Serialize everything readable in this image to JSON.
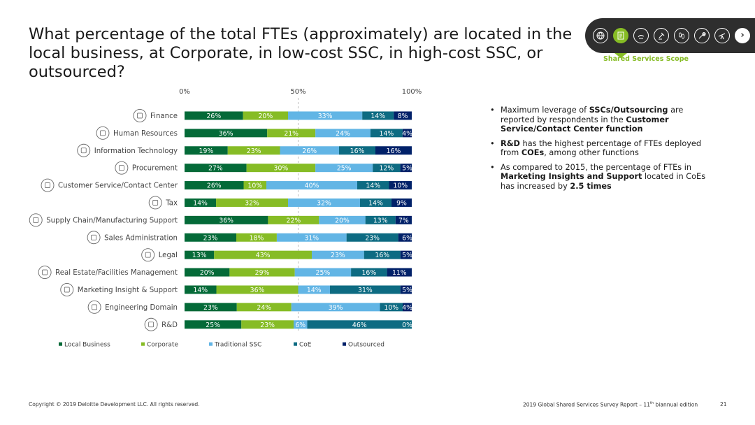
{
  "title": "What percentage of the total FTEs (approximately) are located in the local business, at Corporate, in low-cost SSC, in high-cost SSC, or outsourced?",
  "nav": {
    "icons": [
      "globe-icon",
      "clipboard-icon",
      "hand-icon",
      "gavel-icon",
      "footprints-icon",
      "wrench-icon",
      "telescope-icon",
      "chevron-right-icon"
    ],
    "active_label": "Shared Services Scope",
    "next_glyph": "›",
    "active_color": "#86bc25"
  },
  "chart_data": {
    "type": "bar",
    "orientation": "horizontal",
    "stacked": true,
    "axis_ticks": [
      "0%",
      "50%",
      "100%"
    ],
    "xlim": [
      0,
      100
    ],
    "legend_position": "bottom",
    "categories": [
      "Finance",
      "Human Resources",
      "Information Technology",
      "Procurement",
      "Customer Service/Contact Center",
      "Tax",
      "Supply Chain/Manufacturing Support",
      "Sales Administration",
      "Legal",
      "Real Estate/Facilities Management",
      "Marketing Insight & Support",
      "Engineering Domain",
      "R&D"
    ],
    "category_icons": [
      "dollar-icon",
      "people-icon",
      "network-icon",
      "procurement-icon",
      "headset-icon",
      "percent-icon",
      "supply-chain-icon",
      "thermometer-icon",
      "gavel-icon",
      "building-icon",
      "presentation-icon",
      "hardhat-icon",
      "research-icon"
    ],
    "series": [
      {
        "name": "Local Business",
        "color": "#046a38",
        "label_color": "#ffffff",
        "values": [
          26,
          36,
          19,
          27,
          26,
          14,
          36,
          23,
          13,
          20,
          14,
          23,
          25
        ]
      },
      {
        "name": "Corporate",
        "color": "#86bc25",
        "label_color": "#ffffff",
        "values": [
          20,
          21,
          23,
          30,
          10,
          32,
          22,
          18,
          43,
          29,
          36,
          24,
          23
        ]
      },
      {
        "name": "Traditional SSC",
        "color": "#62b5e5",
        "label_color": "#ffffff",
        "values": [
          33,
          24,
          26,
          25,
          40,
          32,
          20,
          31,
          23,
          25,
          14,
          39,
          6
        ]
      },
      {
        "name": "CoE",
        "color": "#0d6b82",
        "label_color": "#ffffff",
        "values": [
          14,
          14,
          16,
          12,
          14,
          14,
          13,
          23,
          16,
          16,
          31,
          10,
          46
        ]
      },
      {
        "name": "Outsourced",
        "color": "#012169",
        "label_color": "#ffffff",
        "values": [
          8,
          4,
          16,
          5,
          10,
          9,
          7,
          6,
          5,
          11,
          5,
          4,
          0
        ]
      }
    ],
    "value_suffix": "%"
  },
  "bullets": [
    [
      {
        "t": "Maximum leverage of ",
        "b": false
      },
      {
        "t": "SSCs/Outsourcing",
        "b": true
      },
      {
        "t": " are reported by respondents in the ",
        "b": false
      },
      {
        "t": "Customer Service/Contact Center function",
        "b": true
      }
    ],
    [
      {
        "t": "R&D",
        "b": true
      },
      {
        "t": " has the highest percentage of FTEs deployed from ",
        "b": false
      },
      {
        "t": "COEs",
        "b": true
      },
      {
        "t": ", among other functions",
        "b": false
      }
    ],
    [
      {
        "t": "As compared to 2015, the percentage of FTEs in ",
        "b": false
      },
      {
        "t": "Marketing Insights and Support",
        "b": true
      },
      {
        "t": " located in CoEs has increased by ",
        "b": false
      },
      {
        "t": "2.5 times",
        "b": true
      }
    ]
  ],
  "footer": {
    "copyright": "Copyright © 2019 Deloitte Development LLC. All rights reserved.",
    "report_prefix": "2019 Global Shared Services Survey Report – 11",
    "report_sup": "th",
    "report_suffix": " biannual edition",
    "page_number": "21"
  }
}
